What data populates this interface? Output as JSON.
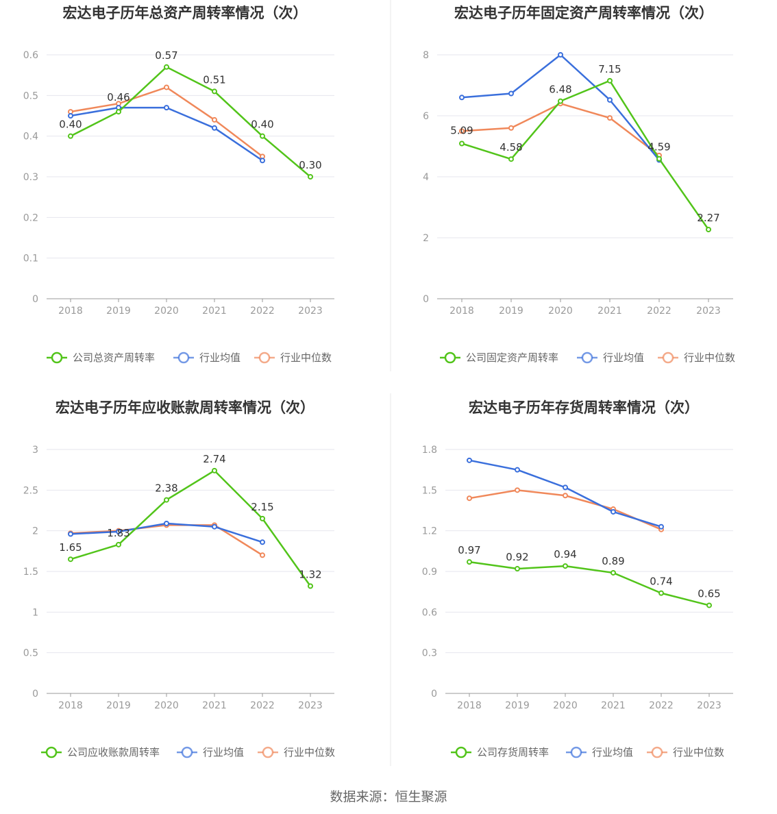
{
  "colors": {
    "company": "#52c41a",
    "avg": "#3a6fdc",
    "median": "#f0885a",
    "grid": "#e6e6ee",
    "axis": "#999999",
    "tick_text": "#999999",
    "value_text": "#333333",
    "title_text": "#333333",
    "legend_text": "#666666",
    "divider": "#e8e8e8"
  },
  "source": "数据来源：恒生聚源",
  "chart_data": [
    {
      "type": "line",
      "title": "宏达电子历年总资产周转率情况（次）",
      "categories": [
        "2018",
        "2019",
        "2020",
        "2021",
        "2022",
        "2023"
      ],
      "yticks": [
        "0",
        "0.1",
        "0.2",
        "0.3",
        "0.4",
        "0.5",
        "0.6"
      ],
      "ylim": [
        0,
        0.6
      ],
      "series": [
        {
          "name": "公司总资产周转率",
          "role": "company",
          "values": [
            0.4,
            0.46,
            0.57,
            0.51,
            0.4,
            0.3
          ],
          "labels": [
            "0.40",
            "0.46",
            "0.57",
            "0.51",
            "0.40",
            "0.30"
          ]
        },
        {
          "name": "行业均值",
          "role": "avg",
          "values": [
            0.45,
            0.47,
            0.47,
            0.42,
            0.34,
            null
          ]
        },
        {
          "name": "行业中位数",
          "role": "median",
          "values": [
            0.46,
            0.48,
            0.52,
            0.44,
            0.35,
            null
          ]
        }
      ]
    },
    {
      "type": "line",
      "title": "宏达电子历年固定资产周转率情况（次）",
      "categories": [
        "2018",
        "2019",
        "2020",
        "2021",
        "2022",
        "2023"
      ],
      "yticks": [
        "0",
        "2",
        "4",
        "6",
        "8"
      ],
      "ylim": [
        0,
        8
      ],
      "series": [
        {
          "name": "公司固定资产周转率",
          "role": "company",
          "values": [
            5.09,
            4.58,
            6.48,
            7.15,
            4.59,
            2.27
          ],
          "labels": [
            "5.09",
            "4.58",
            "6.48",
            "7.15",
            "4.59",
            "2.27"
          ]
        },
        {
          "name": "行业均值",
          "role": "avg",
          "values": [
            6.6,
            6.73,
            8.0,
            6.52,
            4.55,
            null
          ]
        },
        {
          "name": "行业中位数",
          "role": "median",
          "values": [
            5.5,
            5.6,
            6.4,
            5.93,
            4.7,
            null
          ]
        }
      ]
    },
    {
      "type": "line",
      "title": "宏达电子历年应收账款周转率情况（次）",
      "categories": [
        "2018",
        "2019",
        "2020",
        "2021",
        "2022",
        "2023"
      ],
      "yticks": [
        "0",
        "0.5",
        "1",
        "1.5",
        "2",
        "2.5",
        "3"
      ],
      "ylim": [
        0,
        3
      ],
      "series": [
        {
          "name": "公司应收账款周转率",
          "role": "company",
          "values": [
            1.65,
            1.83,
            2.38,
            2.74,
            2.15,
            1.32
          ],
          "labels": [
            "1.65",
            "1.83",
            "2.38",
            "2.74",
            "2.15",
            "1.32"
          ]
        },
        {
          "name": "行业均值",
          "role": "avg",
          "values": [
            1.96,
            1.99,
            2.09,
            2.05,
            1.86,
            null
          ]
        },
        {
          "name": "行业中位数",
          "role": "median",
          "values": [
            1.97,
            2.0,
            2.07,
            2.07,
            1.7,
            null
          ]
        }
      ]
    },
    {
      "type": "line",
      "title": "宏达电子历年存货周转率情况（次）",
      "categories": [
        "2018",
        "2019",
        "2020",
        "2021",
        "2022",
        "2023"
      ],
      "yticks": [
        "0",
        "0.3",
        "0.6",
        "0.9",
        "1.2",
        "1.5",
        "1.8"
      ],
      "ylim": [
        0,
        1.8
      ],
      "series": [
        {
          "name": "公司存货周转率",
          "role": "company",
          "values": [
            0.97,
            0.92,
            0.94,
            0.89,
            0.74,
            0.65
          ],
          "labels": [
            "0.97",
            "0.92",
            "0.94",
            "0.89",
            "0.74",
            "0.65"
          ]
        },
        {
          "name": "行业均值",
          "role": "avg",
          "values": [
            1.72,
            1.65,
            1.52,
            1.34,
            1.23,
            null
          ]
        },
        {
          "name": "行业中位数",
          "role": "median",
          "values": [
            1.44,
            1.5,
            1.46,
            1.36,
            1.21,
            null
          ]
        }
      ]
    }
  ]
}
